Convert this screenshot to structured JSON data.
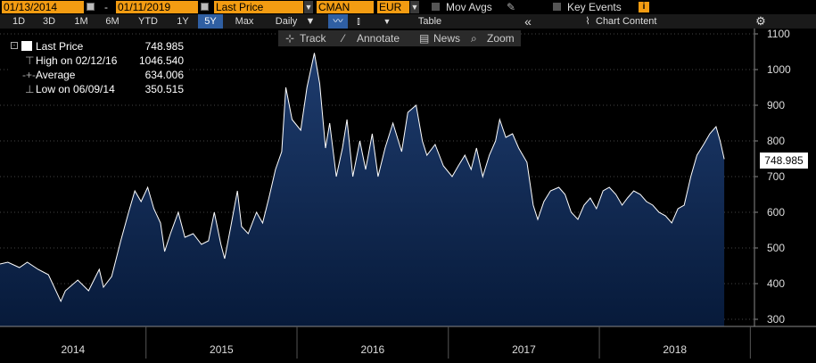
{
  "toolbar": {
    "start_date": "01/13/2014",
    "separator": "-",
    "end_date": "01/11/2019",
    "price_field": "Last Price",
    "ticker": "CMAN",
    "currency": "EUR",
    "mov_avgs": "Mov Avgs",
    "key_events": "Key Events",
    "key_events_badge": "i"
  },
  "periods": [
    "1D",
    "3D",
    "1M",
    "6M",
    "YTD",
    "1Y",
    "5Y",
    "Max"
  ],
  "active_period": "5Y",
  "frequency": "Daily",
  "table_label": "Table",
  "chart_content_label": "Chart Content",
  "subtoolbar": {
    "track": "Track",
    "annotate": "Annotate",
    "news": "News",
    "zoom": "Zoom"
  },
  "legend": {
    "last_price_label": "Last Price",
    "last_price_value": "748.985",
    "high_label": "High on 02/12/16",
    "high_value": "1046.540",
    "average_label": "Average",
    "average_value": "634.006",
    "low_label": "Low on 06/09/14",
    "low_value": "350.515"
  },
  "last_price_tag": "748.985",
  "colors": {
    "area_top": "#1e3c6e",
    "area_bottom": "#071a3a",
    "line": "#ffffff",
    "accent_orange": "#f39c12",
    "active_blue": "#2f5fa3"
  },
  "chart_data": {
    "type": "area",
    "title": "",
    "xlabel": "",
    "ylabel": "",
    "ylim": [
      280,
      1110
    ],
    "yticks": [
      300,
      400,
      500,
      600,
      700,
      800,
      900,
      1000,
      1100
    ],
    "year_labels": [
      "2014",
      "2015",
      "2016",
      "2017",
      "2018"
    ],
    "grid": true,
    "x_range": [
      "2014-01-13",
      "2019-01-11"
    ],
    "series": [
      {
        "values": [
          [
            "2014-01-13",
            455
          ],
          [
            "2014-02-01",
            460
          ],
          [
            "2014-03-01",
            445
          ],
          [
            "2014-03-20",
            460
          ],
          [
            "2014-04-15",
            440
          ],
          [
            "2014-05-10",
            425
          ],
          [
            "2014-06-09",
            350.5
          ],
          [
            "2014-06-20",
            380
          ],
          [
            "2014-07-20",
            410
          ],
          [
            "2014-08-15",
            380
          ],
          [
            "2014-09-10",
            440
          ],
          [
            "2014-09-20",
            390
          ],
          [
            "2014-10-10",
            420
          ],
          [
            "2014-11-01",
            520
          ],
          [
            "2014-11-20",
            600
          ],
          [
            "2014-12-05",
            660
          ],
          [
            "2014-12-20",
            630
          ],
          [
            "2015-01-05",
            670
          ],
          [
            "2015-01-20",
            610
          ],
          [
            "2015-02-05",
            570
          ],
          [
            "2015-02-15",
            490
          ],
          [
            "2015-03-01",
            540
          ],
          [
            "2015-03-20",
            600
          ],
          [
            "2015-04-05",
            530
          ],
          [
            "2015-04-25",
            540
          ],
          [
            "2015-05-15",
            510
          ],
          [
            "2015-06-01",
            520
          ],
          [
            "2015-06-15",
            600
          ],
          [
            "2015-07-01",
            510
          ],
          [
            "2015-07-10",
            470
          ],
          [
            "2015-07-25",
            560
          ],
          [
            "2015-08-10",
            660
          ],
          [
            "2015-08-20",
            560
          ],
          [
            "2015-09-05",
            540
          ],
          [
            "2015-09-25",
            600
          ],
          [
            "2015-10-10",
            570
          ],
          [
            "2015-10-25",
            640
          ],
          [
            "2015-11-10",
            720
          ],
          [
            "2015-11-25",
            770
          ],
          [
            "2015-12-05",
            950
          ],
          [
            "2015-12-20",
            860
          ],
          [
            "2016-01-10",
            830
          ],
          [
            "2016-01-25",
            950
          ],
          [
            "2016-02-12",
            1046.5
          ],
          [
            "2016-02-25",
            960
          ],
          [
            "2016-03-10",
            780
          ],
          [
            "2016-03-20",
            850
          ],
          [
            "2016-04-05",
            700
          ],
          [
            "2016-04-20",
            780
          ],
          [
            "2016-05-01",
            860
          ],
          [
            "2016-05-15",
            700
          ],
          [
            "2016-06-01",
            800
          ],
          [
            "2016-06-15",
            720
          ],
          [
            "2016-07-01",
            820
          ],
          [
            "2016-07-15",
            700
          ],
          [
            "2016-08-01",
            780
          ],
          [
            "2016-08-20",
            850
          ],
          [
            "2016-09-10",
            770
          ],
          [
            "2016-09-25",
            880
          ],
          [
            "2016-10-15",
            900
          ],
          [
            "2016-10-30",
            800
          ],
          [
            "2016-11-10",
            760
          ],
          [
            "2016-11-30",
            790
          ],
          [
            "2016-12-20",
            730
          ],
          [
            "2017-01-10",
            700
          ],
          [
            "2017-01-25",
            730
          ],
          [
            "2017-02-10",
            760
          ],
          [
            "2017-02-25",
            720
          ],
          [
            "2017-03-10",
            780
          ],
          [
            "2017-03-25",
            700
          ],
          [
            "2017-04-10",
            760
          ],
          [
            "2017-04-25",
            800
          ],
          [
            "2017-05-05",
            860
          ],
          [
            "2017-05-20",
            810
          ],
          [
            "2017-06-05",
            820
          ],
          [
            "2017-06-20",
            780
          ],
          [
            "2017-07-10",
            740
          ],
          [
            "2017-07-25",
            620
          ],
          [
            "2017-08-05",
            580
          ],
          [
            "2017-08-20",
            630
          ],
          [
            "2017-09-05",
            660
          ],
          [
            "2017-09-25",
            670
          ],
          [
            "2017-10-10",
            650
          ],
          [
            "2017-10-25",
            600
          ],
          [
            "2017-11-10",
            580
          ],
          [
            "2017-11-25",
            620
          ],
          [
            "2017-12-10",
            640
          ],
          [
            "2017-12-25",
            610
          ],
          [
            "2018-01-10",
            660
          ],
          [
            "2018-01-25",
            670
          ],
          [
            "2018-02-10",
            650
          ],
          [
            "2018-02-25",
            620
          ],
          [
            "2018-03-10",
            640
          ],
          [
            "2018-03-25",
            660
          ],
          [
            "2018-04-10",
            650
          ],
          [
            "2018-04-25",
            630
          ],
          [
            "2018-05-10",
            620
          ],
          [
            "2018-05-25",
            600
          ],
          [
            "2018-06-10",
            590
          ],
          [
            "2018-06-25",
            570
          ],
          [
            "2018-07-10",
            610
          ],
          [
            "2018-07-25",
            620
          ],
          [
            "2018-08-10",
            700
          ],
          [
            "2018-08-25",
            760
          ],
          [
            "2018-09-10",
            790
          ],
          [
            "2018-09-25",
            820
          ],
          [
            "2018-10-10",
            840
          ],
          [
            "2018-10-20",
            800
          ],
          [
            "2018-10-30",
            749
          ]
        ]
      }
    ]
  }
}
